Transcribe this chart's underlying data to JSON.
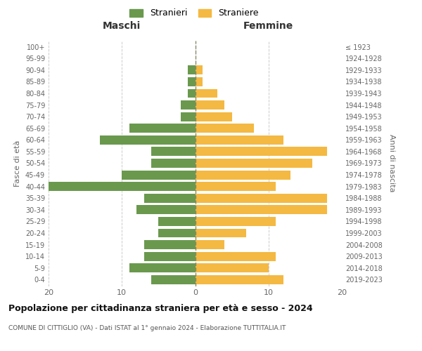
{
  "age_groups": [
    "0-4",
    "5-9",
    "10-14",
    "15-19",
    "20-24",
    "25-29",
    "30-34",
    "35-39",
    "40-44",
    "45-49",
    "50-54",
    "55-59",
    "60-64",
    "65-69",
    "70-74",
    "75-79",
    "80-84",
    "85-89",
    "90-94",
    "95-99",
    "100+"
  ],
  "birth_years": [
    "2019-2023",
    "2014-2018",
    "2009-2013",
    "2004-2008",
    "1999-2003",
    "1994-1998",
    "1989-1993",
    "1984-1988",
    "1979-1983",
    "1974-1978",
    "1969-1973",
    "1964-1968",
    "1959-1963",
    "1954-1958",
    "1949-1953",
    "1944-1948",
    "1939-1943",
    "1934-1938",
    "1929-1933",
    "1924-1928",
    "≤ 1923"
  ],
  "males": [
    6,
    9,
    7,
    7,
    5,
    5,
    8,
    7,
    20,
    10,
    6,
    6,
    13,
    9,
    2,
    2,
    1,
    1,
    1,
    0,
    0
  ],
  "females": [
    12,
    10,
    11,
    4,
    7,
    11,
    18,
    18,
    11,
    13,
    16,
    18,
    12,
    8,
    5,
    4,
    3,
    1,
    1,
    0,
    0
  ],
  "male_color": "#6a994e",
  "female_color": "#f4b942",
  "background_color": "#ffffff",
  "grid_color": "#cccccc",
  "title": "Popolazione per cittadinanza straniera per età e sesso - 2024",
  "subtitle": "COMUNE DI CITTIGLIO (VA) - Dati ISTAT al 1° gennaio 2024 - Elaborazione TUTTITALIA.IT",
  "xlabel_left": "Maschi",
  "xlabel_right": "Femmine",
  "ylabel_left": "Fasce di età",
  "ylabel_right": "Anni di nascita",
  "legend_male": "Stranieri",
  "legend_female": "Straniere",
  "xlim": 20,
  "bar_height": 0.78
}
